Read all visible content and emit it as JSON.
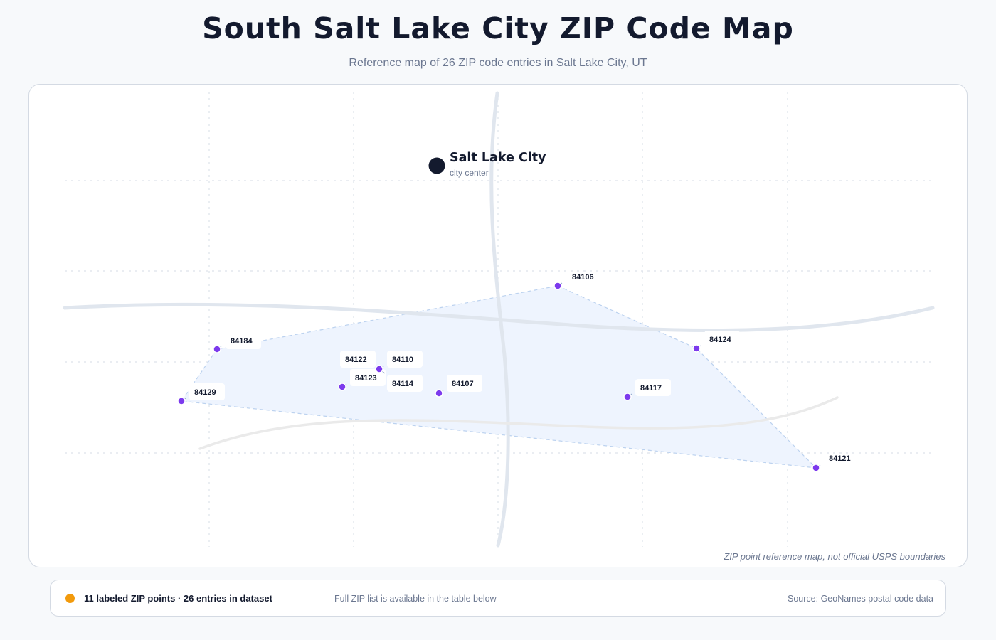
{
  "header": {
    "title": "South Salt Lake City ZIP Code Map",
    "subtitle": "Reference map of 26 ZIP code entries in Salt Lake City, UT"
  },
  "map": {
    "city_center": {
      "name": "Salt Lake City",
      "caption": "city center"
    },
    "zip_points": [
      {
        "zip": "84106"
      },
      {
        "zip": "84184"
      },
      {
        "zip": "84124"
      },
      {
        "zip": "84122"
      },
      {
        "zip": "84110"
      },
      {
        "zip": "84123"
      },
      {
        "zip": "84114"
      },
      {
        "zip": "84107"
      },
      {
        "zip": "84117"
      },
      {
        "zip": "84129"
      },
      {
        "zip": "84121"
      }
    ],
    "disclaimer": "ZIP point reference map, not official USPS boundaries"
  },
  "legend": {
    "summary": "11 labeled ZIP points · 26 entries in dataset",
    "note": "Full ZIP list is available in the table below",
    "source": "Source: GeoNames postal code data"
  },
  "colors": {
    "zip_point": "#7c3aed",
    "legend_dot": "#f29a0c",
    "hull_fill": "#eef4fe",
    "city_dot": "#131a2e"
  }
}
